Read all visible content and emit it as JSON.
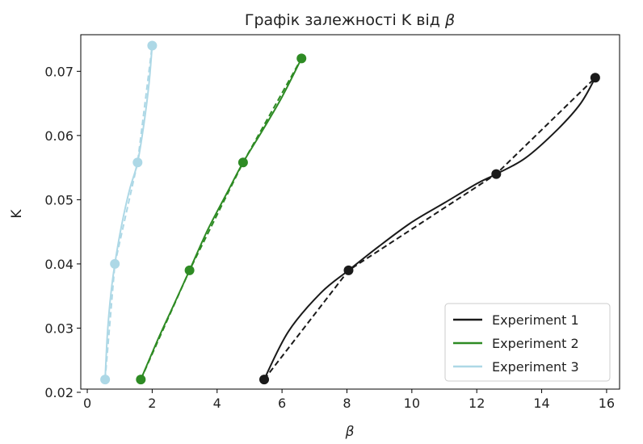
{
  "chart_data": {
    "type": "line",
    "title_text": "Графік залежності K від ",
    "title_symbol": "β",
    "xlabel": "β",
    "ylabel": "K",
    "xlim": [
      -0.2,
      16.4
    ],
    "ylim": [
      0.0205,
      0.0757
    ],
    "xticks": [
      0,
      2,
      4,
      6,
      8,
      10,
      12,
      14,
      16
    ],
    "yticks": [
      0.02,
      0.03,
      0.04,
      0.05,
      0.06,
      0.07
    ],
    "ytick_labels": [
      "0.02",
      "0.03",
      "0.04",
      "0.05",
      "0.06",
      "0.07"
    ],
    "grid": false,
    "legend_position": "lower-right",
    "series": [
      {
        "name": "Experiment 1",
        "color": "#1a1a1a",
        "points": [
          [
            5.45,
            0.022
          ],
          [
            8.05,
            0.039
          ],
          [
            12.6,
            0.054
          ],
          [
            15.65,
            0.069
          ]
        ],
        "smooth": [
          [
            5.45,
            0.022
          ],
          [
            6.2,
            0.0295
          ],
          [
            7.2,
            0.0355
          ],
          [
            8.05,
            0.039
          ],
          [
            9.0,
            0.0428
          ],
          [
            10.0,
            0.0465
          ],
          [
            11.0,
            0.0495
          ],
          [
            12.0,
            0.0525
          ],
          [
            12.6,
            0.054
          ],
          [
            13.5,
            0.0565
          ],
          [
            14.5,
            0.061
          ],
          [
            15.2,
            0.065
          ],
          [
            15.65,
            0.069
          ]
        ]
      },
      {
        "name": "Experiment 2",
        "color": "#2e8b24",
        "points": [
          [
            1.65,
            0.022
          ],
          [
            3.15,
            0.039
          ],
          [
            4.8,
            0.0558
          ],
          [
            6.6,
            0.072
          ]
        ],
        "smooth": [
          [
            1.65,
            0.022
          ],
          [
            2.2,
            0.0285
          ],
          [
            2.7,
            0.034
          ],
          [
            3.15,
            0.039
          ],
          [
            3.7,
            0.0452
          ],
          [
            4.3,
            0.051
          ],
          [
            4.8,
            0.0558
          ],
          [
            5.4,
            0.0608
          ],
          [
            6.0,
            0.066
          ],
          [
            6.6,
            0.072
          ]
        ]
      },
      {
        "name": "Experiment 3",
        "color": "#add8e6",
        "points": [
          [
            0.55,
            0.022
          ],
          [
            0.85,
            0.04
          ],
          [
            1.55,
            0.0558
          ],
          [
            2.0,
            0.074
          ]
        ],
        "smooth": [
          [
            0.55,
            0.022
          ],
          [
            0.62,
            0.029
          ],
          [
            0.72,
            0.035
          ],
          [
            0.85,
            0.04
          ],
          [
            1.05,
            0.0458
          ],
          [
            1.3,
            0.0515
          ],
          [
            1.55,
            0.0558
          ],
          [
            1.75,
            0.062
          ],
          [
            1.9,
            0.068
          ],
          [
            2.0,
            0.074
          ]
        ]
      }
    ]
  }
}
